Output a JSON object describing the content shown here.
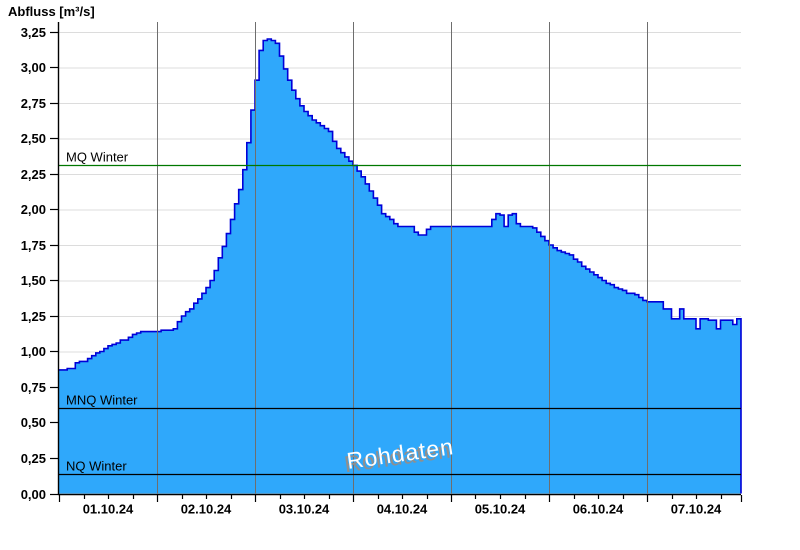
{
  "title": "Abfluss [m³/s]",
  "watermark": "Rohdaten",
  "colors": {
    "area_fill": "#2FA8FB",
    "area_line": "#0000D8",
    "mq_line": "#007800",
    "ref_line": "#000000",
    "grid_h": "#DCDCDC",
    "grid_v": "#6E6E6E",
    "axis": "#000000",
    "tick_text": "#000000"
  },
  "chart_data": {
    "type": "area",
    "title": "Abfluss [m³/s]",
    "ylabel": "Abfluss [m³/s]",
    "x_start": "01.10.24 00:00",
    "x_step_hours": 1,
    "ylim": [
      0,
      3.32
    ],
    "grid": true,
    "legend": "none",
    "y_ticks": [
      {
        "v": 0.0,
        "label": "0,00"
      },
      {
        "v": 0.25,
        "label": "0,25"
      },
      {
        "v": 0.5,
        "label": "0,50"
      },
      {
        "v": 0.75,
        "label": "0,75"
      },
      {
        "v": 1.0,
        "label": "1,00"
      },
      {
        "v": 1.25,
        "label": "1,25"
      },
      {
        "v": 1.5,
        "label": "1,50"
      },
      {
        "v": 1.75,
        "label": "1,75"
      },
      {
        "v": 2.0,
        "label": "2,00"
      },
      {
        "v": 2.25,
        "label": "2,25"
      },
      {
        "v": 2.5,
        "label": "2,50"
      },
      {
        "v": 2.75,
        "label": "2,75"
      },
      {
        "v": 3.0,
        "label": "3,00"
      },
      {
        "v": 3.25,
        "label": "3,25"
      }
    ],
    "x_tick_days": [
      "01.10.24",
      "02.10.24",
      "03.10.24",
      "04.10.24",
      "05.10.24",
      "06.10.24",
      "07.10.24"
    ],
    "minor_tick_hours": 6,
    "reference_lines": [
      {
        "label": "MQ Winter",
        "value": 2.31,
        "color_key": "mq_line"
      },
      {
        "label": "MNQ Winter",
        "value": 0.6,
        "color_key": "ref_line"
      },
      {
        "label": "NQ Winter",
        "value": 0.14,
        "color_key": "ref_line"
      }
    ],
    "series": [
      {
        "name": "Abfluss Rohdaten",
        "values": [
          0.87,
          0.87,
          0.88,
          0.88,
          0.92,
          0.93,
          0.93,
          0.95,
          0.97,
          0.99,
          1.0,
          1.02,
          1.04,
          1.05,
          1.06,
          1.08,
          1.08,
          1.1,
          1.12,
          1.13,
          1.14,
          1.14,
          1.14,
          1.14,
          1.14,
          1.15,
          1.15,
          1.15,
          1.16,
          1.21,
          1.25,
          1.28,
          1.3,
          1.34,
          1.37,
          1.41,
          1.45,
          1.5,
          1.57,
          1.66,
          1.74,
          1.83,
          1.93,
          2.04,
          2.14,
          2.28,
          2.47,
          2.7,
          2.91,
          3.12,
          3.19,
          3.2,
          3.19,
          3.17,
          3.08,
          2.99,
          2.91,
          2.84,
          2.78,
          2.73,
          2.69,
          2.66,
          2.63,
          2.61,
          2.59,
          2.57,
          2.55,
          2.48,
          2.43,
          2.4,
          2.37,
          2.34,
          2.31,
          2.27,
          2.23,
          2.18,
          2.13,
          2.08,
          2.03,
          1.97,
          1.95,
          1.93,
          1.9,
          1.88,
          1.88,
          1.88,
          1.88,
          1.84,
          1.82,
          1.82,
          1.86,
          1.88,
          1.88,
          1.88,
          1.88,
          1.88,
          1.88,
          1.88,
          1.88,
          1.88,
          1.88,
          1.88,
          1.88,
          1.88,
          1.88,
          1.88,
          1.93,
          1.97,
          1.96,
          1.88,
          1.96,
          1.97,
          1.9,
          1.88,
          1.88,
          1.88,
          1.87,
          1.84,
          1.81,
          1.78,
          1.75,
          1.73,
          1.71,
          1.7,
          1.69,
          1.68,
          1.65,
          1.63,
          1.6,
          1.58,
          1.56,
          1.54,
          1.52,
          1.5,
          1.48,
          1.47,
          1.45,
          1.44,
          1.43,
          1.41,
          1.41,
          1.4,
          1.38,
          1.36,
          1.35,
          1.35,
          1.35,
          1.35,
          1.3,
          1.3,
          1.23,
          1.23,
          1.3,
          1.23,
          1.23,
          1.23,
          1.16,
          1.23,
          1.23,
          1.22,
          1.22,
          1.16,
          1.22,
          1.22,
          1.22,
          1.19,
          1.23,
          1.23
        ]
      }
    ]
  }
}
